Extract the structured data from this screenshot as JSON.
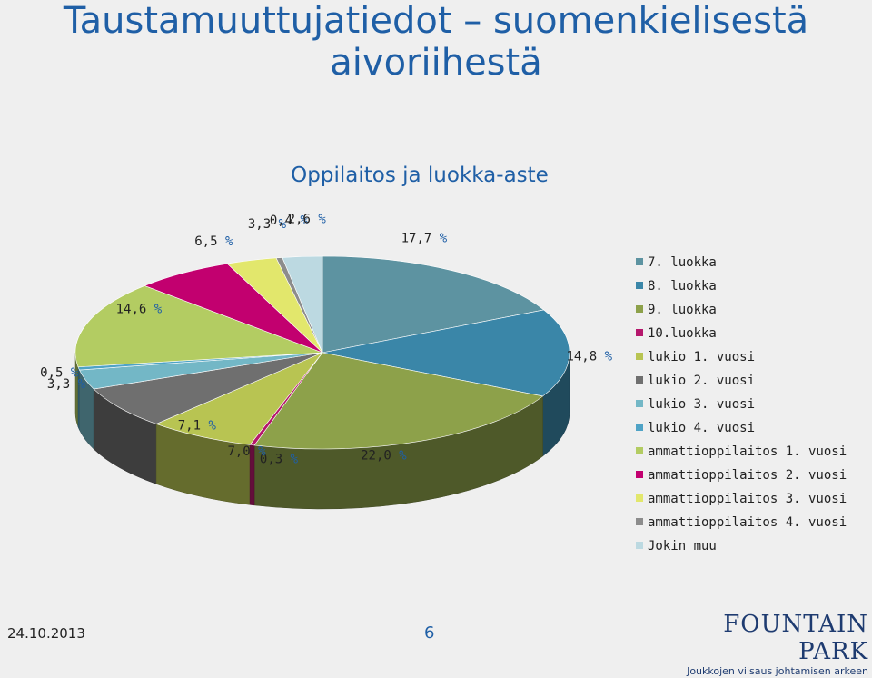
{
  "slide": {
    "title_line1": "Taustamuuttujatiedot – suomenkielisestä",
    "title_line2": "aivoriihestä",
    "date": "24.10.2013",
    "page": "6",
    "brand_name": "FOUNTAIN PARK",
    "brand_tagline": "Joukkojen viisaus johtamisen arkeen"
  },
  "chart_data": {
    "type": "pie",
    "style": "3d",
    "title": "Oppilaitos ja luokka-aste",
    "legend_position": "right",
    "unit": "%",
    "series": [
      {
        "labels": [
          "7. luokka",
          "8. luokka",
          "9. luokka",
          "10.luokka",
          "lukio 1. vuosi",
          "lukio 2. vuosi",
          "lukio 3. vuosi",
          "lukio 4. vuosi",
          "ammattioppilaitos 1. vuosi",
          "ammattioppilaitos 2. vuosi",
          "ammattioppilaitos 3. vuosi",
          "ammattioppilaitos 4. vuosi",
          "Jokin muu"
        ],
        "values": [
          17.7,
          14.8,
          22.0,
          0.3,
          7.0,
          7.1,
          3.3,
          0.5,
          14.6,
          6.5,
          3.3,
          0.4,
          2.6
        ],
        "value_labels": [
          "17,7",
          "14,8",
          "22,0",
          "0,3",
          "7,0",
          "7,1",
          "3,3",
          "0,5",
          "14,6",
          "6,5",
          "3,3",
          "0,4",
          "2,6"
        ],
        "colors": [
          "#5d93a1",
          "#3a86a8",
          "#8da14a",
          "#b5176c",
          "#b8c452",
          "#6f6f6f",
          "#73b7c6",
          "#4fa3c6",
          "#b3cc62",
          "#c2006f",
          "#e2e76c",
          "#8c8c8c",
          "#bcd9e1"
        ]
      }
    ]
  }
}
